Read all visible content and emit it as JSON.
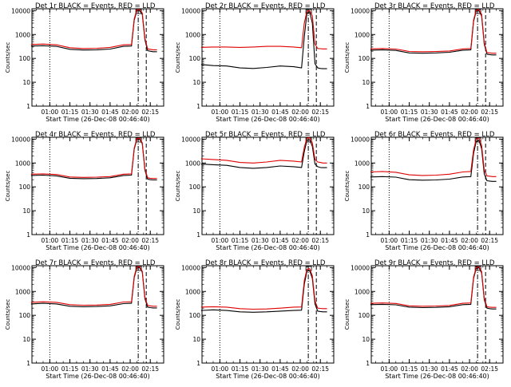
{
  "figure": {
    "ylabel": "Counts/sec",
    "xlabel": "Start Time (26-Dec-08 00:46:40)",
    "x_ticks": [
      "01:00",
      "01:15",
      "01:30",
      "01:45",
      "02:00",
      "02:15"
    ],
    "y_ticks": [
      "1",
      "10",
      "100",
      "1000",
      "10000"
    ]
  },
  "chart_data": [
    {
      "type": "line",
      "title": "Det 1r BLACK = Events, RED = LLD",
      "xlabel": "Start Time (26-Dec-08 00:46:40)",
      "ylabel": "Counts/sec",
      "xlim": [
        "00:46:40",
        "02:25"
      ],
      "ylim": [
        1,
        12000
      ],
      "yscale": "log",
      "markers": {
        "dotted": "01:00",
        "dashdot": "02:06",
        "dashed": "02:12"
      },
      "series": [
        {
          "color": "#000000",
          "x": [
            "00:46",
            "00:55",
            "01:05",
            "01:15",
            "01:25",
            "01:35",
            "01:45",
            "01:55",
            "02:01",
            "02:03",
            "02:05",
            "02:07",
            "02:09",
            "02:11",
            "02:13",
            "02:15",
            "02:17",
            "02:20"
          ],
          "y": [
            330,
            340,
            320,
            240,
            225,
            230,
            245,
            320,
            330,
            4000,
            9800,
            10000,
            7000,
            600,
            210,
            200,
            190,
            190
          ]
        },
        {
          "color": "#e00000",
          "x": [
            "00:46",
            "00:55",
            "01:05",
            "01:15",
            "01:25",
            "01:35",
            "01:45",
            "01:55",
            "02:01",
            "02:03",
            "02:05",
            "02:07",
            "02:09",
            "02:11",
            "02:13",
            "02:15",
            "02:17",
            "02:20"
          ],
          "y": [
            380,
            400,
            370,
            280,
            260,
            265,
            290,
            370,
            380,
            4500,
            11000,
            11000,
            8000,
            700,
            250,
            240,
            230,
            230
          ]
        }
      ]
    },
    {
      "type": "line",
      "title": "Det 2r BLACK = Events, RED = LLD",
      "xlabel": "Start Time (26-Dec-08 00:46:40)",
      "ylabel": "Counts/sec",
      "xlim": [
        "00:46:40",
        "02:25"
      ],
      "ylim": [
        1,
        12000
      ],
      "yscale": "log",
      "markers": {
        "dotted": "01:00",
        "dashdot": "02:06",
        "dashed": "02:12"
      },
      "series": [
        {
          "color": "#000000",
          "x": [
            "00:46",
            "00:55",
            "01:05",
            "01:15",
            "01:25",
            "01:35",
            "01:45",
            "01:55",
            "02:01",
            "02:03",
            "02:05",
            "02:07",
            "02:09",
            "02:11",
            "02:13",
            "02:15",
            "02:17",
            "02:20"
          ],
          "y": [
            55,
            50,
            48,
            40,
            38,
            42,
            48,
            45,
            40,
            800,
            8000,
            9000,
            3000,
            60,
            40,
            38,
            37,
            37
          ]
        },
        {
          "color": "#e00000",
          "x": [
            "00:46",
            "00:55",
            "01:05",
            "01:15",
            "01:25",
            "01:35",
            "01:45",
            "01:55",
            "02:01",
            "02:03",
            "02:05",
            "02:07",
            "02:09",
            "02:11",
            "02:13",
            "02:15",
            "02:17",
            "02:20"
          ],
          "y": [
            290,
            300,
            300,
            290,
            300,
            320,
            320,
            300,
            280,
            3000,
            9500,
            10000,
            6000,
            400,
            260,
            255,
            250,
            250
          ]
        }
      ]
    },
    {
      "type": "line",
      "title": "Det 3r BLACK = Events, RED = LLD",
      "xlabel": "Start Time (26-Dec-08 00:46:40)",
      "ylabel": "Counts/sec",
      "xlim": [
        "00:46:40",
        "02:25"
      ],
      "ylim": [
        1,
        12000
      ],
      "yscale": "log",
      "markers": {
        "dotted": "01:00",
        "dashdot": "02:06",
        "dashed": "02:12"
      },
      "series": [
        {
          "color": "#000000",
          "x": [
            "00:46",
            "00:55",
            "01:05",
            "01:15",
            "01:25",
            "01:35",
            "01:45",
            "01:55",
            "02:01",
            "02:03",
            "02:05",
            "02:07",
            "02:09",
            "02:11",
            "02:13",
            "02:15",
            "02:17",
            "02:20"
          ],
          "y": [
            220,
            230,
            215,
            170,
            165,
            170,
            180,
            220,
            230,
            3500,
            9500,
            10000,
            6000,
            400,
            150,
            145,
            140,
            140
          ]
        },
        {
          "color": "#e00000",
          "x": [
            "00:46",
            "00:55",
            "01:05",
            "01:15",
            "01:25",
            "01:35",
            "01:45",
            "01:55",
            "02:01",
            "02:03",
            "02:05",
            "02:07",
            "02:09",
            "02:11",
            "02:13",
            "02:15",
            "02:17",
            "02:20"
          ],
          "y": [
            250,
            260,
            245,
            195,
            190,
            195,
            205,
            250,
            260,
            4000,
            10500,
            11000,
            7000,
            450,
            175,
            170,
            165,
            165
          ]
        }
      ]
    },
    {
      "type": "line",
      "title": "Det 4r BLACK = Events, RED = LLD",
      "xlabel": "Start Time (26-Dec-08 00:46:40)",
      "ylabel": "Counts/sec",
      "xlim": [
        "00:46:40",
        "02:25"
      ],
      "ylim": [
        1,
        12000
      ],
      "yscale": "log",
      "markers": {
        "dotted": "01:00",
        "dashdot": "02:06",
        "dashed": "02:12"
      },
      "series": [
        {
          "color": "#000000",
          "x": [
            "00:46",
            "00:55",
            "01:05",
            "01:15",
            "01:25",
            "01:35",
            "01:45",
            "01:55",
            "02:01",
            "02:03",
            "02:05",
            "02:07",
            "02:09",
            "02:11",
            "02:13",
            "02:15",
            "02:17",
            "02:20"
          ],
          "y": [
            300,
            310,
            290,
            230,
            220,
            225,
            240,
            300,
            310,
            3800,
            9500,
            10000,
            6500,
            500,
            210,
            200,
            195,
            195
          ]
        },
        {
          "color": "#e00000",
          "x": [
            "00:46",
            "00:55",
            "01:05",
            "01:15",
            "01:25",
            "01:35",
            "01:45",
            "01:55",
            "02:01",
            "02:03",
            "02:05",
            "02:07",
            "02:09",
            "02:11",
            "02:13",
            "02:15",
            "02:17",
            "02:20"
          ],
          "y": [
            340,
            350,
            330,
            260,
            250,
            255,
            270,
            340,
            350,
            4200,
            10500,
            11000,
            7000,
            560,
            240,
            230,
            225,
            225
          ]
        }
      ]
    },
    {
      "type": "line",
      "title": "Det 5r BLACK = Events, RED = LLD",
      "xlabel": "Start Time (26-Dec-08 00:46:40)",
      "ylabel": "Counts/sec",
      "xlim": [
        "00:46:40",
        "02:25"
      ],
      "ylim": [
        1,
        12000
      ],
      "yscale": "log",
      "markers": {
        "dotted": "01:00",
        "dashdot": "02:06",
        "dashed": "02:12"
      },
      "series": [
        {
          "color": "#000000",
          "x": [
            "00:46",
            "00:55",
            "01:05",
            "01:15",
            "01:25",
            "01:35",
            "01:45",
            "01:55",
            "02:01",
            "02:03",
            "02:05",
            "02:07",
            "02:09",
            "02:11",
            "02:13",
            "02:15",
            "02:17",
            "02:20"
          ],
          "y": [
            900,
            850,
            800,
            650,
            600,
            650,
            750,
            700,
            650,
            3000,
            9000,
            9500,
            5000,
            900,
            700,
            650,
            640,
            640
          ]
        },
        {
          "color": "#e00000",
          "x": [
            "00:46",
            "00:55",
            "01:05",
            "01:15",
            "01:25",
            "01:35",
            "01:45",
            "01:55",
            "02:01",
            "02:03",
            "02:05",
            "02:07",
            "02:09",
            "02:11",
            "02:13",
            "02:15",
            "02:17",
            "02:20"
          ],
          "y": [
            1500,
            1400,
            1300,
            1050,
            1000,
            1100,
            1300,
            1200,
            1100,
            4500,
            11000,
            11500,
            7000,
            1400,
            1100,
            1050,
            1000,
            1000
          ]
        }
      ]
    },
    {
      "type": "line",
      "title": "Det 6r BLACK = Events, RED = LLD",
      "xlabel": "Start Time (26-Dec-08 00:46:40)",
      "ylabel": "Counts/sec",
      "xlim": [
        "00:46:40",
        "02:25"
      ],
      "ylim": [
        1,
        12000
      ],
      "yscale": "log",
      "markers": {
        "dotted": "01:00",
        "dashdot": "02:06",
        "dashed": "02:12"
      },
      "series": [
        {
          "color": "#000000",
          "x": [
            "00:46",
            "00:55",
            "01:05",
            "01:15",
            "01:25",
            "01:35",
            "01:45",
            "01:55",
            "02:01",
            "02:03",
            "02:05",
            "02:07",
            "02:09",
            "02:11",
            "02:13",
            "02:15",
            "02:17",
            "02:20"
          ],
          "y": [
            260,
            270,
            255,
            200,
            190,
            195,
            210,
            260,
            270,
            2500,
            8000,
            9000,
            4000,
            350,
            180,
            175,
            170,
            170
          ]
        },
        {
          "color": "#e00000",
          "x": [
            "00:46",
            "00:55",
            "01:05",
            "01:15",
            "01:25",
            "01:35",
            "01:45",
            "01:55",
            "02:01",
            "02:03",
            "02:05",
            "02:07",
            "02:09",
            "02:11",
            "02:13",
            "02:15",
            "02:17",
            "02:20"
          ],
          "y": [
            420,
            440,
            410,
            320,
            300,
            310,
            340,
            420,
            440,
            3500,
            10000,
            11000,
            5500,
            500,
            290,
            280,
            270,
            270
          ]
        }
      ]
    },
    {
      "type": "line",
      "title": "Det 7r BLACK = Events, RED = LLD",
      "xlabel": "Start Time (26-Dec-08 00:46:40)",
      "ylabel": "Counts/sec",
      "xlim": [
        "00:46:40",
        "02:25"
      ],
      "ylim": [
        1,
        12000
      ],
      "yscale": "log",
      "markers": {
        "dotted": "01:00",
        "dashdot": "02:06",
        "dashed": "02:12"
      },
      "series": [
        {
          "color": "#000000",
          "x": [
            "00:46",
            "00:55",
            "01:05",
            "01:15",
            "01:25",
            "01:35",
            "01:45",
            "01:55",
            "02:01",
            "02:03",
            "02:05",
            "02:07",
            "02:09",
            "02:11",
            "02:13",
            "02:15",
            "02:17",
            "02:20"
          ],
          "y": [
            300,
            320,
            300,
            240,
            230,
            235,
            250,
            310,
            320,
            3800,
            9500,
            10000,
            6500,
            500,
            220,
            210,
            205,
            205
          ]
        },
        {
          "color": "#e00000",
          "x": [
            "00:46",
            "00:55",
            "01:05",
            "01:15",
            "01:25",
            "01:35",
            "01:45",
            "01:55",
            "02:01",
            "02:03",
            "02:05",
            "02:07",
            "02:09",
            "02:11",
            "02:13",
            "02:15",
            "02:17",
            "02:20"
          ],
          "y": [
            350,
            370,
            350,
            280,
            265,
            270,
            290,
            360,
            370,
            4300,
            10800,
            11000,
            7000,
            580,
            260,
            250,
            240,
            240
          ]
        }
      ]
    },
    {
      "type": "line",
      "title": "Det 8r BLACK = Events, RED = LLD",
      "xlabel": "Start Time (26-Dec-08 00:46:40)",
      "ylabel": "Counts/sec",
      "xlim": [
        "00:46:40",
        "02:25"
      ],
      "ylim": [
        1,
        12000
      ],
      "yscale": "log",
      "markers": {
        "dotted": "01:00",
        "dashdot": "02:06",
        "dashed": "02:12"
      },
      "series": [
        {
          "color": "#000000",
          "x": [
            "00:46",
            "00:55",
            "01:05",
            "01:15",
            "01:25",
            "01:35",
            "01:45",
            "01:55",
            "02:01",
            "02:03",
            "02:05",
            "02:07",
            "02:09",
            "02:11",
            "02:13",
            "02:15",
            "02:17",
            "02:20"
          ],
          "y": [
            160,
            170,
            160,
            140,
            135,
            140,
            150,
            160,
            165,
            2000,
            7000,
            7500,
            3500,
            300,
            150,
            145,
            140,
            140
          ]
        },
        {
          "color": "#e00000",
          "x": [
            "00:46",
            "00:55",
            "01:05",
            "01:15",
            "01:25",
            "01:35",
            "01:45",
            "01:55",
            "02:01",
            "02:03",
            "02:05",
            "02:07",
            "02:09",
            "02:11",
            "02:13",
            "02:15",
            "02:17",
            "02:20"
          ],
          "y": [
            220,
            230,
            220,
            190,
            180,
            185,
            200,
            220,
            225,
            2800,
            8500,
            9000,
            4500,
            400,
            200,
            195,
            190,
            190
          ]
        }
      ]
    },
    {
      "type": "line",
      "title": "Det 9r BLACK = Events, RED = LLD",
      "xlabel": "Start Time (26-Dec-08 00:46:40)",
      "ylabel": "Counts/sec",
      "xlim": [
        "00:46:40",
        "02:25"
      ],
      "ylim": [
        1,
        12000
      ],
      "yscale": "log",
      "markers": {
        "dotted": "01:00",
        "dashdot": "02:06",
        "dashed": "02:12"
      },
      "series": [
        {
          "color": "#000000",
          "x": [
            "00:46",
            "00:55",
            "01:05",
            "01:15",
            "01:25",
            "01:35",
            "01:45",
            "01:55",
            "02:01",
            "02:03",
            "02:05",
            "02:07",
            "02:09",
            "02:11",
            "02:13",
            "02:15",
            "02:17",
            "02:20"
          ],
          "y": [
            280,
            290,
            275,
            220,
            210,
            215,
            230,
            280,
            290,
            3500,
            9000,
            10000,
            6000,
            450,
            200,
            190,
            185,
            185
          ]
        },
        {
          "color": "#e00000",
          "x": [
            "00:46",
            "00:55",
            "01:05",
            "01:15",
            "01:25",
            "01:35",
            "01:45",
            "01:55",
            "02:01",
            "02:03",
            "02:05",
            "02:07",
            "02:09",
            "02:11",
            "02:13",
            "02:15",
            "02:17",
            "02:20"
          ],
          "y": [
            320,
            330,
            315,
            250,
            240,
            245,
            260,
            320,
            330,
            4000,
            10000,
            11000,
            6800,
            520,
            230,
            220,
            215,
            215
          ]
        }
      ]
    }
  ]
}
